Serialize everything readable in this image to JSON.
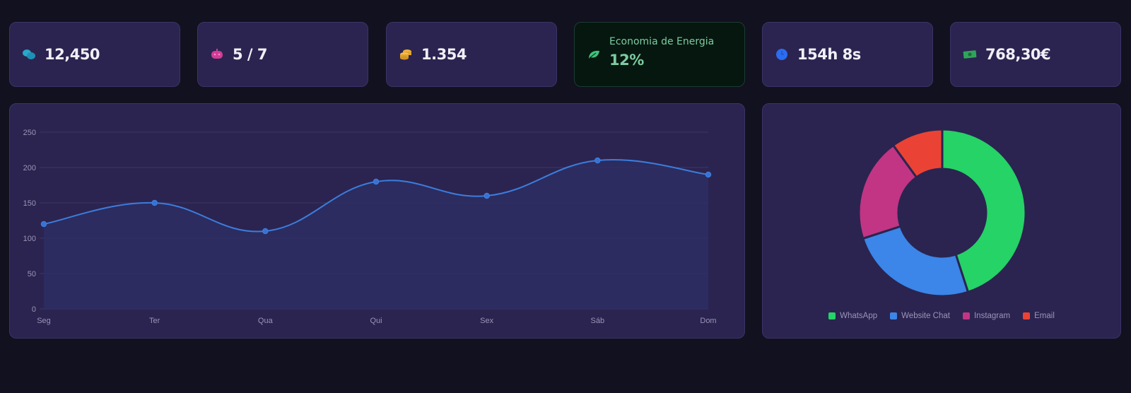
{
  "stats": [
    {
      "icon": "chat-bubbles-icon",
      "value": "12,450",
      "color": "#2aa7c9"
    },
    {
      "icon": "robot-icon",
      "value": "5 / 7",
      "color": "#d23c96"
    },
    {
      "icon": "coins-icon",
      "value": "1.354",
      "color": "#f0b43a"
    },
    {
      "icon": "leaf-icon",
      "label": "Economia de Energia",
      "value": "12%",
      "color": "#3ec07a"
    },
    {
      "icon": "clock-icon",
      "value": "154h 8s",
      "color": "#2b6cf0"
    },
    {
      "icon": "money-bill-icon",
      "value": "768,30€",
      "color": "#2fa55a"
    }
  ],
  "chart_data": [
    {
      "type": "line",
      "title": "",
      "xlabel": "",
      "ylabel": "",
      "categories": [
        "Seg",
        "Ter",
        "Qua",
        "Qui",
        "Sex",
        "Sáb",
        "Dom"
      ],
      "series": [
        {
          "name": "",
          "values": [
            120,
            150,
            110,
            180,
            160,
            210,
            190
          ],
          "color": "#3b7ddd"
        }
      ],
      "yticks": [
        0,
        50,
        100,
        150,
        200,
        250
      ],
      "ylim": [
        0,
        250
      ],
      "grid": true,
      "fill": true
    },
    {
      "type": "pie",
      "donut": true,
      "categories": [
        "WhatsApp",
        "Website Chat",
        "Instagram",
        "Email"
      ],
      "values": [
        45,
        25,
        20,
        10
      ],
      "colors": [
        "#25d366",
        "#3b86e8",
        "#c13584",
        "#ea4335"
      ],
      "legend_position": "bottom"
    }
  ],
  "legend": [
    {
      "label": "WhatsApp",
      "color": "#25d366"
    },
    {
      "label": "Website Chat",
      "color": "#3b86e8"
    },
    {
      "label": "Instagram",
      "color": "#c13584"
    },
    {
      "label": "Email",
      "color": "#ea4335"
    }
  ]
}
